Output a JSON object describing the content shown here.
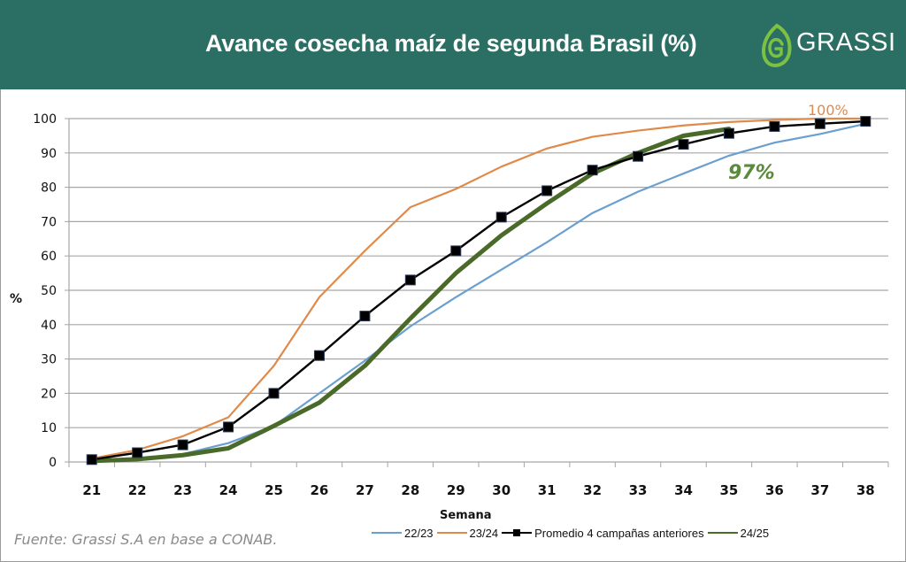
{
  "header": {
    "title": "Avance cosecha maíz de segunda Brasil (%)",
    "logo_text": "GRASSI",
    "logo_icon": "leaf-g-icon",
    "background": "#2b6e63"
  },
  "source": "Fuente: Grassi S.A en base a CONAB.",
  "annotations": {
    "label_2324": "100%",
    "label_2425": "97%"
  },
  "chart_data": {
    "type": "line",
    "title": "Avance cosecha maíz de segunda Brasil (%)",
    "xlabel": "Semana",
    "ylabel": "%",
    "x": [
      21,
      22,
      23,
      24,
      25,
      26,
      27,
      28,
      29,
      30,
      31,
      32,
      33,
      34,
      35,
      36,
      37,
      38
    ],
    "x_tick_labels": [
      "21",
      "22",
      "23",
      "24",
      "25",
      "26",
      "27",
      "28",
      "29",
      "30",
      "31",
      "32",
      "33",
      "34",
      "35",
      "36",
      "37",
      "38"
    ],
    "ylim": [
      0,
      100
    ],
    "y_ticks": [
      0,
      10,
      20,
      30,
      40,
      50,
      60,
      70,
      80,
      90,
      100
    ],
    "y_tick_labels": [
      "0",
      "10",
      "20",
      "30",
      "40",
      "50",
      "60",
      "70",
      "80",
      "90",
      "100"
    ],
    "grid": true,
    "legend_position": "bottom",
    "series": [
      {
        "name": "22/23",
        "color": "#6a9fd0",
        "width": 2.2,
        "marker": "none",
        "values": [
          0.5,
          1,
          2.3,
          5.5,
          10.5,
          20,
          29.5,
          39.5,
          48,
          56,
          64,
          72.5,
          78.7,
          84,
          89.2,
          93,
          95.5,
          98.5
        ]
      },
      {
        "name": "23/24",
        "color": "#e08a4a",
        "width": 2.2,
        "marker": "none",
        "values": [
          1,
          3.5,
          7.5,
          13,
          28,
          48,
          61.5,
          74.2,
          79.5,
          86,
          91.3,
          94.7,
          96.5,
          98,
          99,
          99.6,
          100,
          100
        ]
      },
      {
        "name": "Promedio 4 campañas anteriores",
        "color": "#000000",
        "width": 2.4,
        "marker": "square",
        "values": [
          0.7,
          2.7,
          5,
          10.2,
          20,
          31,
          42.5,
          53,
          61.5,
          71.3,
          79,
          85,
          89,
          92.5,
          95.7,
          97.7,
          98.5,
          99.2
        ]
      },
      {
        "name": "24/25",
        "color": "#4a6a2a",
        "width": 5,
        "marker": "none",
        "values": [
          0.3,
          0.8,
          2,
          4,
          10.5,
          17.3,
          28,
          41.8,
          55,
          66,
          75.3,
          84,
          90,
          95,
          97,
          null,
          null,
          null
        ]
      }
    ],
    "annotations": [
      "100%",
      "97%"
    ]
  }
}
